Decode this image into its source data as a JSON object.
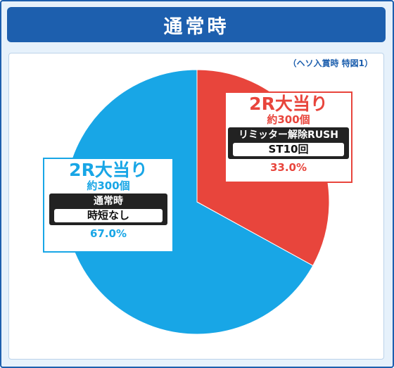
{
  "header": {
    "title": "通常時"
  },
  "note": "（ヘソ入賞時 特図1）",
  "chart_data": {
    "type": "pie",
    "title": "通常時",
    "series": [
      {
        "name": "2R大当り",
        "value": 33.0,
        "label": "33.0%",
        "balls": "約300個",
        "mode": "リミッター解除RUSH",
        "result": "ST10回",
        "color": "#e8453c"
      },
      {
        "name": "2R大当り",
        "value": 67.0,
        "label": "67.0%",
        "balls": "約300個",
        "mode": "通常時",
        "result": "時短なし",
        "color": "#18a6e6"
      }
    ]
  }
}
